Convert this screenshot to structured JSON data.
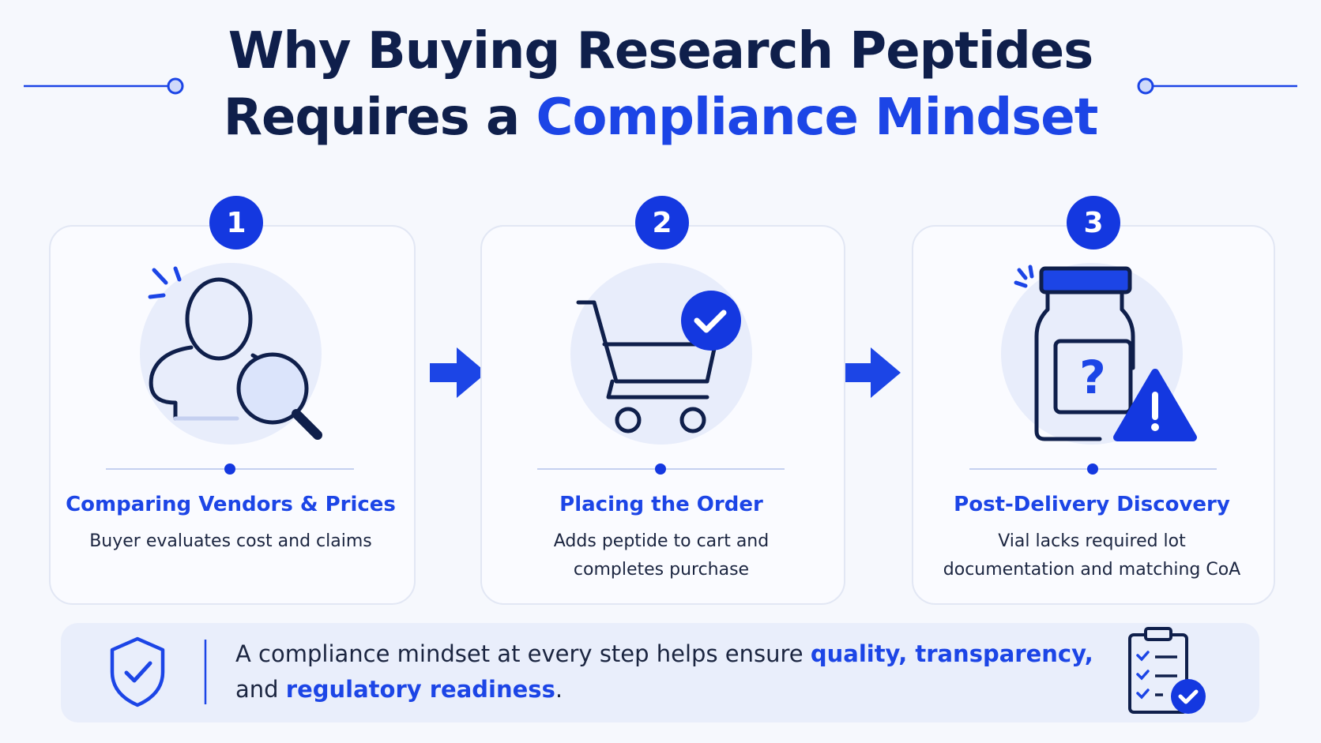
{
  "header": {
    "title_line1": "Why Buying Research Peptides",
    "title_line2_plain": "Requires a",
    "title_line2_highlight": "Compliance Mindset"
  },
  "steps": [
    {
      "number": "1",
      "title": "Comparing Vendors & Prices",
      "description_lines": [
        "Buyer evaluates cost and claims"
      ]
    },
    {
      "number": "2",
      "title": "Placing the Order",
      "description_lines": [
        "Adds peptide to cart and",
        "completes purchase"
      ]
    },
    {
      "number": "3",
      "title": "Post-Delivery Discovery",
      "description_lines": [
        "Vial lacks required lot",
        "documentation and matching CoA"
      ]
    }
  ],
  "footer": {
    "text_1": "A compliance mindset at every step helps ensure",
    "emphasis_1": "quality, transparency,",
    "text_2": "and",
    "emphasis_2": "regulatory readiness",
    "text_3": "."
  }
}
